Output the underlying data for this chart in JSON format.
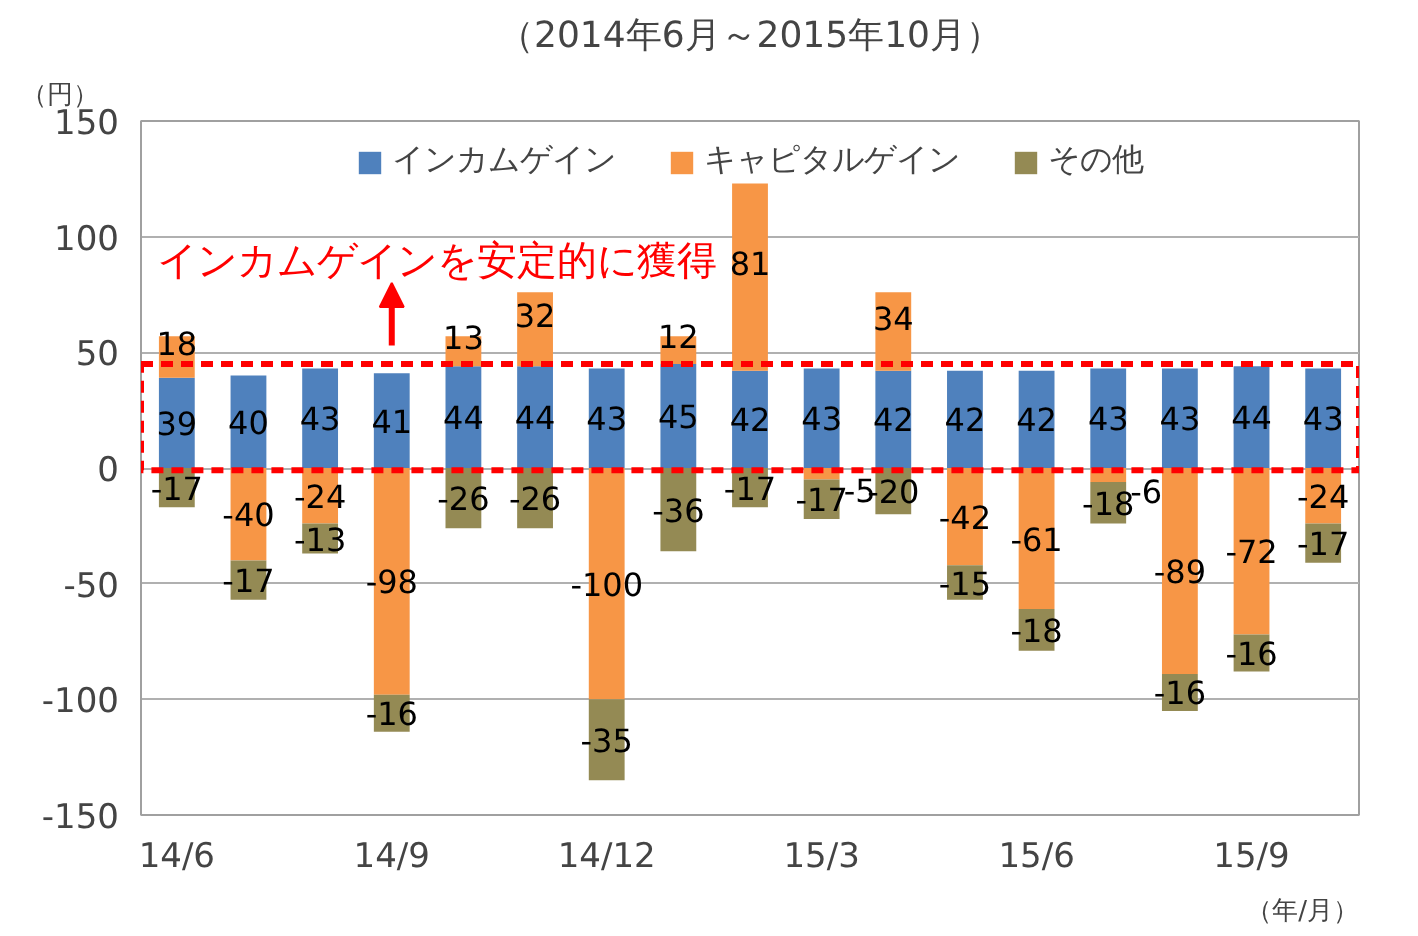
{
  "chart_data": {
    "type": "bar",
    "stacked": true,
    "title": "（2014年6月～2015年10月）",
    "ylabel": "（円）",
    "xlabel": "（年/月）",
    "categories": [
      "14/6",
      null,
      null,
      "14/9",
      null,
      null,
      "14/12",
      null,
      null,
      "15/3",
      null,
      null,
      "15/6",
      null,
      null,
      "15/9",
      null
    ],
    "series": [
      {
        "name": "インカムゲイン",
        "color": "#4f81bd",
        "values": [
          39,
          40,
          43,
          41,
          44,
          44,
          43,
          45,
          42,
          43,
          42,
          42,
          42,
          43,
          43,
          44,
          43
        ]
      },
      {
        "name": "キャピタルゲイン",
        "color": "#f79646",
        "values": [
          18,
          -40,
          -24,
          -98,
          13,
          32,
          -100,
          12,
          81,
          -5,
          34,
          -42,
          -61,
          -6,
          -89,
          -72,
          -24
        ]
      },
      {
        "name": "その他",
        "color": "#948a54",
        "values": [
          -17,
          -17,
          -13,
          -16,
          -26,
          -26,
          -35,
          -36,
          -17,
          -17,
          -20,
          -15,
          -18,
          -18,
          -16,
          -16,
          -17
        ]
      }
    ],
    "ylim": [
      -150,
      150
    ],
    "yticks": [
      -150,
      -100,
      -50,
      0,
      50,
      100,
      150
    ],
    "grid": "y",
    "legend": "top",
    "data_labels": true,
    "annotations": [
      "インカムゲインを安定的に獲得"
    ]
  }
}
